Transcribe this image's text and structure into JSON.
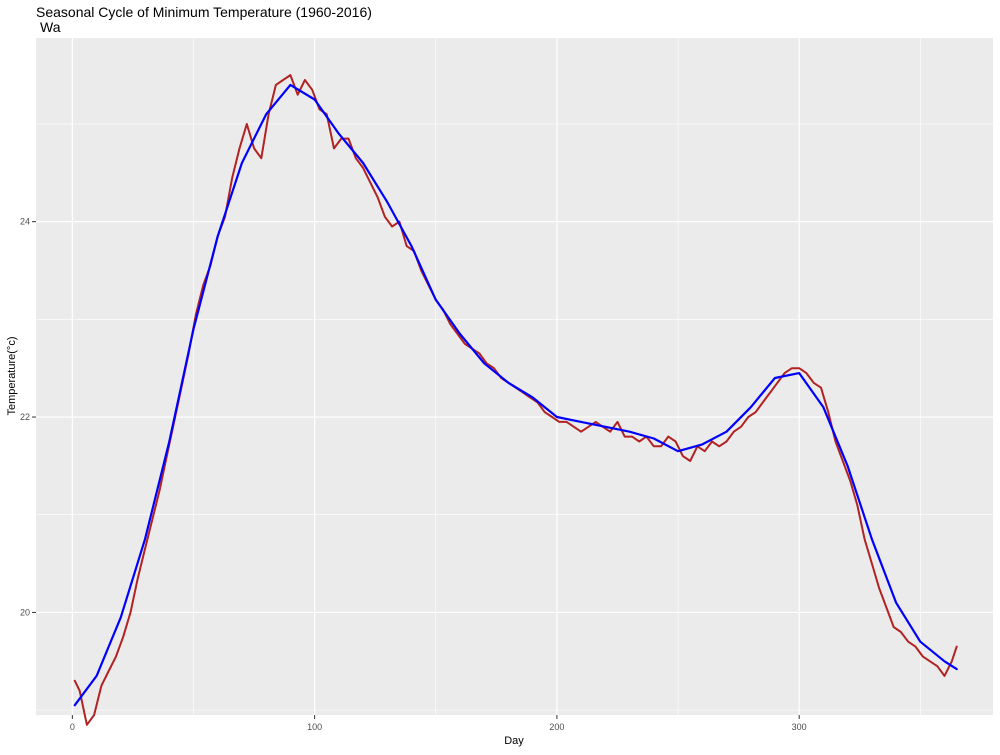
{
  "chart_data": {
    "type": "line",
    "title": "Seasonal Cycle of Minimum Temperature (1960-2016)",
    "subtitle": "Wa",
    "xlabel": "Day",
    "ylabel": "Temperature(°c)",
    "xlim": [
      -15,
      380
    ],
    "ylim": [
      18.95,
      25.88
    ],
    "x_ticks": [
      0,
      100,
      200,
      300
    ],
    "y_ticks": [
      20,
      22,
      24
    ],
    "grid": true,
    "legend": "none",
    "colors": {
      "panel": "#EBEBEB",
      "grid": "#FFFFFF",
      "daily": "#B22222",
      "smooth": "#0000FF",
      "text": "#000000",
      "tick_text": "#4D4D4D",
      "tick_mark": "#333333"
    },
    "series": [
      {
        "key": "daily",
        "x": [
          1,
          3,
          6,
          9,
          12,
          15,
          18,
          21,
          24,
          27,
          30,
          33,
          36,
          39,
          42,
          45,
          48,
          51,
          54,
          57,
          60,
          63,
          66,
          69,
          72,
          75,
          78,
          81,
          84,
          87,
          90,
          93,
          96,
          99,
          102,
          105,
          108,
          111,
          114,
          117,
          120,
          123,
          126,
          129,
          132,
          135,
          138,
          141,
          144,
          147,
          150,
          153,
          156,
          159,
          162,
          165,
          168,
          171,
          174,
          177,
          180,
          183,
          186,
          189,
          192,
          195,
          198,
          201,
          204,
          207,
          210,
          213,
          216,
          219,
          222,
          225,
          228,
          231,
          234,
          237,
          240,
          243,
          246,
          249,
          252,
          255,
          258,
          261,
          264,
          267,
          270,
          273,
          276,
          279,
          282,
          285,
          288,
          291,
          294,
          297,
          300,
          303,
          306,
          309,
          312,
          315,
          318,
          321,
          324,
          327,
          330,
          333,
          336,
          339,
          342,
          345,
          348,
          351,
          354,
          357,
          360,
          363,
          365
        ],
        "y": [
          19.3,
          19.2,
          18.85,
          18.95,
          19.25,
          19.4,
          19.55,
          19.75,
          20.0,
          20.35,
          20.65,
          20.95,
          21.25,
          21.6,
          21.95,
          22.3,
          22.65,
          23.05,
          23.35,
          23.55,
          23.85,
          24.05,
          24.45,
          24.75,
          25.0,
          24.75,
          24.65,
          25.1,
          25.4,
          25.45,
          25.5,
          25.3,
          25.45,
          25.35,
          25.15,
          25.1,
          24.75,
          24.85,
          24.85,
          24.65,
          24.55,
          24.4,
          24.25,
          24.05,
          23.95,
          24.0,
          23.75,
          23.7,
          23.5,
          23.35,
          23.2,
          23.1,
          22.95,
          22.85,
          22.75,
          22.7,
          22.65,
          22.55,
          22.5,
          22.4,
          22.35,
          22.3,
          22.25,
          22.2,
          22.15,
          22.05,
          22.0,
          21.95,
          21.95,
          21.9,
          21.85,
          21.9,
          21.95,
          21.9,
          21.85,
          21.95,
          21.8,
          21.8,
          21.75,
          21.8,
          21.7,
          21.7,
          21.8,
          21.75,
          21.6,
          21.55,
          21.7,
          21.65,
          21.75,
          21.7,
          21.75,
          21.85,
          21.9,
          22.0,
          22.05,
          22.15,
          22.25,
          22.35,
          22.45,
          22.5,
          22.5,
          22.45,
          22.35,
          22.3,
          22.05,
          21.75,
          21.55,
          21.35,
          21.1,
          20.75,
          20.5,
          20.25,
          20.05,
          19.85,
          19.8,
          19.7,
          19.65,
          19.55,
          19.5,
          19.45,
          19.35,
          19.5,
          19.65
        ]
      },
      {
        "key": "smooth",
        "x": [
          1,
          10,
          20,
          30,
          40,
          50,
          60,
          70,
          80,
          90,
          100,
          110,
          120,
          130,
          140,
          150,
          160,
          170,
          180,
          190,
          200,
          210,
          220,
          230,
          240,
          250,
          260,
          270,
          280,
          290,
          300,
          310,
          320,
          330,
          340,
          350,
          360,
          365
        ],
        "y": [
          19.05,
          19.35,
          19.95,
          20.75,
          21.75,
          22.9,
          23.85,
          24.6,
          25.1,
          25.4,
          25.25,
          24.9,
          24.6,
          24.2,
          23.75,
          23.2,
          22.85,
          22.55,
          22.35,
          22.2,
          22.0,
          21.95,
          21.9,
          21.85,
          21.78,
          21.65,
          21.72,
          21.85,
          22.1,
          22.4,
          22.45,
          22.1,
          21.5,
          20.75,
          20.1,
          19.7,
          19.5,
          19.42
        ]
      }
    ]
  }
}
